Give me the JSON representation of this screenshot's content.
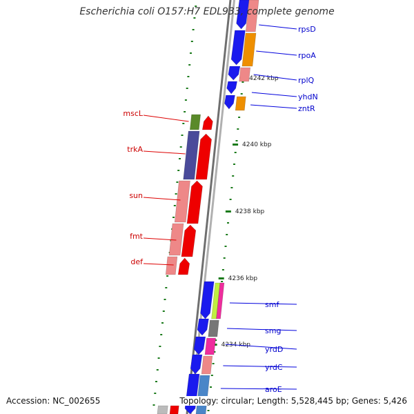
{
  "title": "Escherichia coli O157:H7 EDL933, complete genome",
  "accession_text": "Accession: NC_002655",
  "topology_text": "Topology: circular; Length: 5,528,445 bp; Genes: 5,426",
  "colors": {
    "backbone": "#8c8c8c",
    "ticks": "#1a7a1a",
    "left_label": "#cc0000",
    "right_label": "#0000cc",
    "leader_left": "#dd0000",
    "leader_right": "#0000dd"
  },
  "ruler": [
    {
      "label": "4242 kbp"
    },
    {
      "label": "4240 kbp"
    },
    {
      "label": "4238 kbp"
    },
    {
      "label": "4236 kbp"
    },
    {
      "label": "4234 kbp"
    }
  ],
  "genes_left": [
    {
      "name": "mscL",
      "feature_color": "#5a8a2a"
    },
    {
      "name": "trkA",
      "feature_color": "#4a4a9a"
    },
    {
      "name": "sun",
      "feature_color": "#ee8888"
    },
    {
      "name": "fmt",
      "feature_color": "#ee8888"
    },
    {
      "name": "def",
      "feature_color": "#ee8888"
    }
  ],
  "genes_right": [
    {
      "name": "rpsD",
      "feature_color": "#ee8888"
    },
    {
      "name": "rpoA",
      "feature_color": "#ee8f00"
    },
    {
      "name": "rplQ",
      "feature_color": "#ee8888"
    },
    {
      "name": "yhdN",
      "feature_color": "#2a2aee"
    },
    {
      "name": "zntR",
      "feature_color": "#ee8f00"
    },
    {
      "name": "smf",
      "feature_color": "#c0ee40"
    },
    {
      "name": "smg",
      "feature_color": "#777777"
    },
    {
      "name": "yrdD",
      "feature_color": "#ee2d9d"
    },
    {
      "name": "yrdC",
      "feature_color": "#ee8888"
    },
    {
      "name": "aroE",
      "feature_color": "#4a86c8"
    }
  ]
}
